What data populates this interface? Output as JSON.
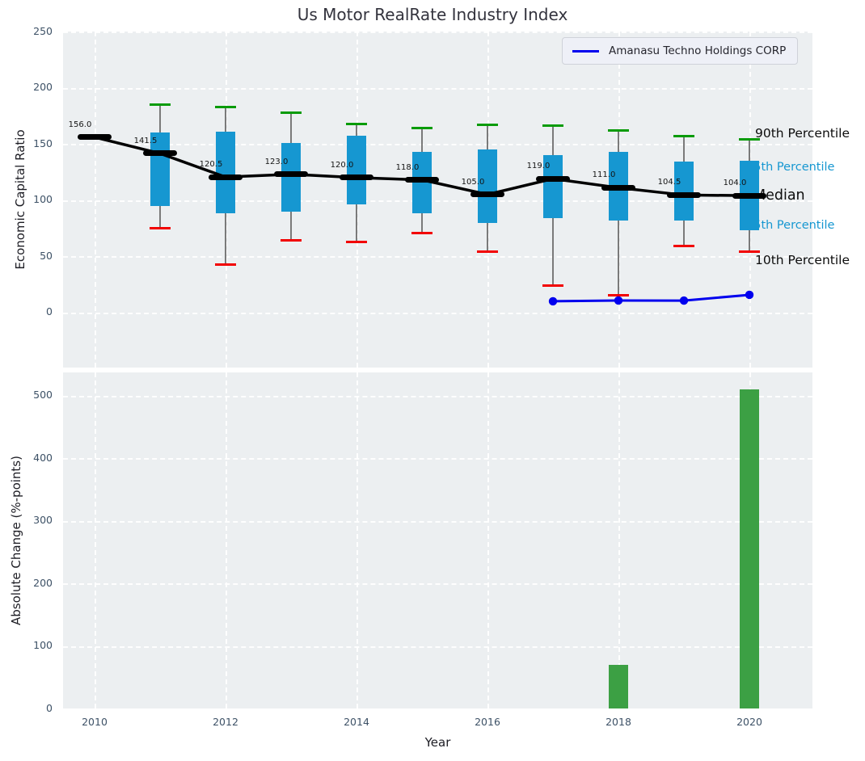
{
  "title": "Us Motor RealRate Industry Index",
  "legend": {
    "label": "Amanasu Techno Holdings CORP"
  },
  "colors": {
    "box_fill": "#1697D1",
    "p90_cap_green": "#089B08",
    "p10_cap_red": "#F20000",
    "median_black": "#000000",
    "company_line_blue": "#0000EE",
    "bar_green": "#3CA044",
    "plot_background": "#ECEFF1",
    "tick_text": "#3D5166"
  },
  "chart_data": [
    {
      "type": "boxplot-timeseries",
      "title": "Us Motor RealRate Industry Index",
      "ylabel": "Economic Capital Ratio",
      "ylim": [
        -49,
        250
      ],
      "yticks": [
        0,
        50,
        100,
        150,
        200,
        250
      ],
      "grid": "white dashed, on",
      "legend_position": "upper right",
      "years": [
        2010,
        2011,
        2012,
        2013,
        2014,
        2015,
        2016,
        2017,
        2018,
        2019,
        2020
      ],
      "median": [
        156.0,
        141.5,
        120.5,
        123.0,
        120.0,
        118.0,
        105.0,
        119.0,
        111.0,
        104.5,
        104.0
      ],
      "q25": [
        null,
        95,
        88,
        90,
        96,
        88,
        80,
        84,
        82,
        82,
        73
      ],
      "q75": [
        null,
        160,
        161,
        151,
        157,
        143,
        145,
        140,
        143,
        134,
        135
      ],
      "p10": [
        null,
        75,
        43,
        64,
        63,
        71,
        54,
        24,
        15,
        59,
        54
      ],
      "p90": [
        null,
        185,
        183,
        178,
        168,
        164,
        167,
        166,
        162,
        157,
        154
      ],
      "percentile_labels": {
        "p90": "90th Percentile",
        "q75": "75th Percentile",
        "median": "Median",
        "q25": "25th Percentile",
        "p10": "10th Percentile"
      },
      "company_series": {
        "name": "Amanasu Techno Holdings CORP",
        "x": [
          2017,
          2018,
          2019,
          2020
        ],
        "y": [
          10.0,
          10.7,
          10.6,
          15.7
        ]
      }
    },
    {
      "type": "bar",
      "ylabel": "Absolute Change (%-points)",
      "xlabel": "Year",
      "ylim": [
        0,
        537
      ],
      "yticks": [
        0,
        100,
        200,
        300,
        400,
        500
      ],
      "xticks": [
        2010,
        2012,
        2014,
        2016,
        2018,
        2020
      ],
      "bars": {
        "x": [
          2018,
          2020
        ],
        "values": [
          70,
          510
        ]
      }
    }
  ]
}
